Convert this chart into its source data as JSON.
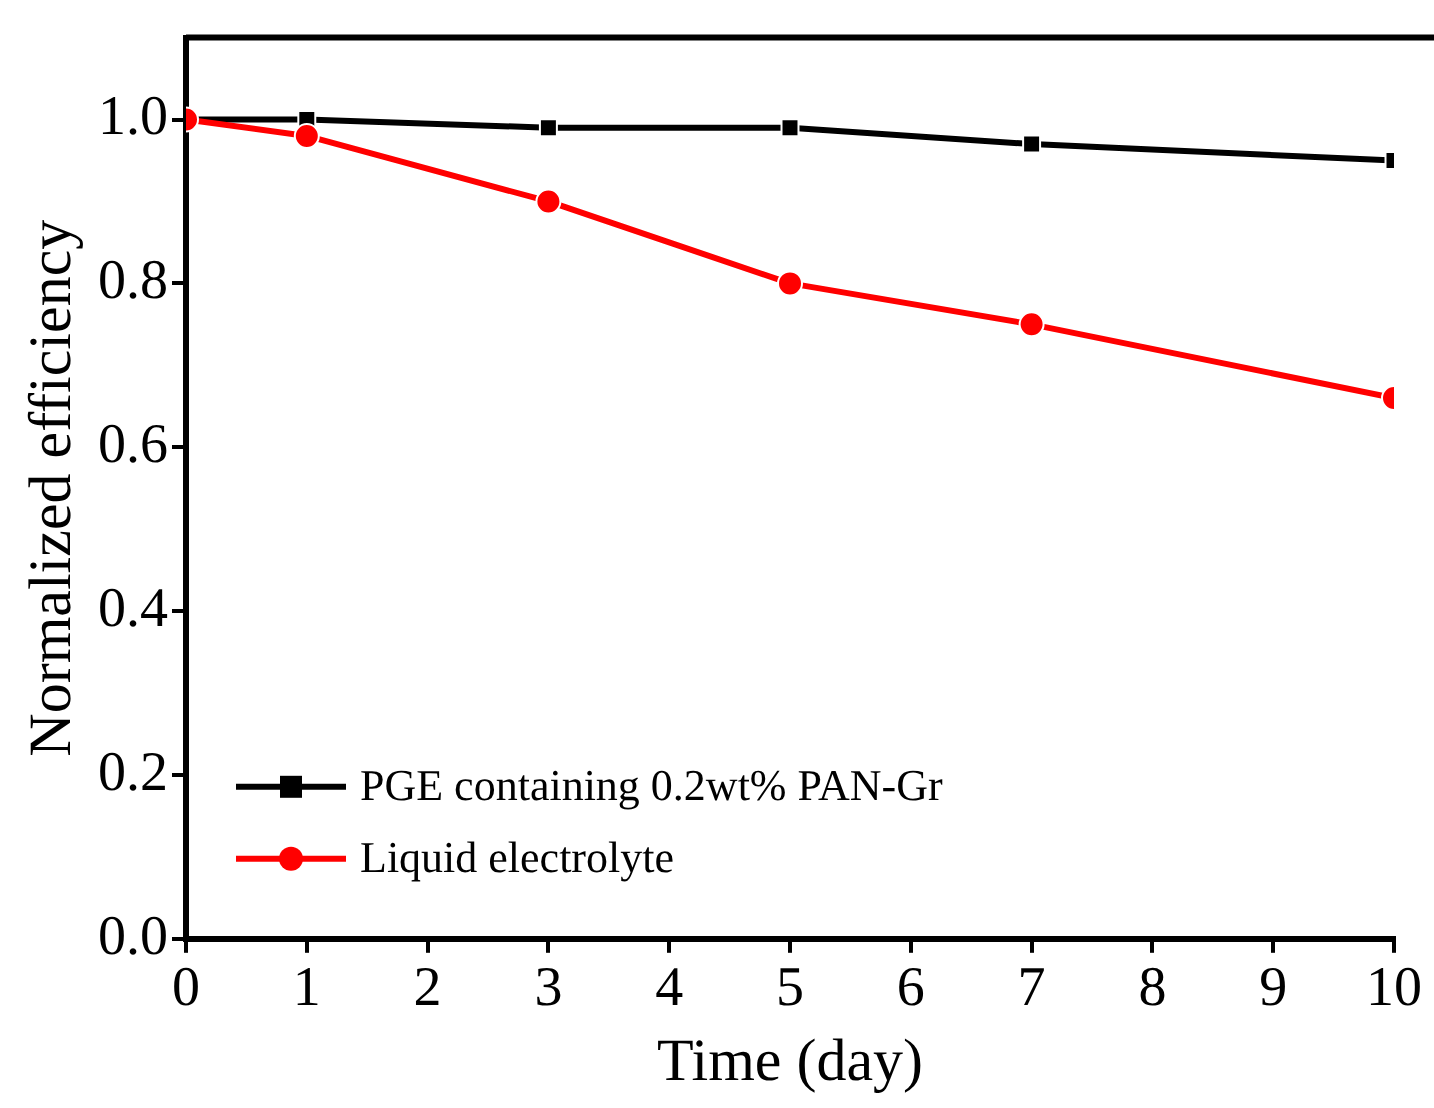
{
  "chart_data": {
    "type": "line",
    "xlabel": "Time (day)",
    "ylabel": "Normalized efficiency",
    "x": [
      0,
      1,
      3,
      5,
      7,
      10
    ],
    "series": [
      {
        "name": "PGE containing 0.2wt% PAN-Gr",
        "color": "#000000",
        "marker": "square",
        "values": [
          1.0,
          1.0,
          0.99,
          0.99,
          0.97,
          0.95
        ]
      },
      {
        "name": "Liquid electrolyte",
        "color": "#ff0000",
        "marker": "circle",
        "values": [
          1.0,
          0.98,
          0.9,
          0.8,
          0.75,
          0.66
        ]
      }
    ],
    "xlim": [
      0,
      10
    ],
    "xticks": [
      0,
      1,
      2,
      3,
      4,
      5,
      6,
      7,
      8,
      9,
      10
    ],
    "ylim": [
      0,
      1.1
    ],
    "yticks": [
      {
        "value": 0,
        "label": "0.0"
      },
      {
        "value": 0.2,
        "label": "0.2"
      },
      {
        "value": 0.4,
        "label": "0.4"
      },
      {
        "value": 0.6,
        "label": "0.6"
      },
      {
        "value": 0.8,
        "label": "0.8"
      },
      {
        "value": 1,
        "label": "1.0"
      }
    ],
    "grid": false,
    "legend": "bottom left",
    "line_style": "solid"
  }
}
